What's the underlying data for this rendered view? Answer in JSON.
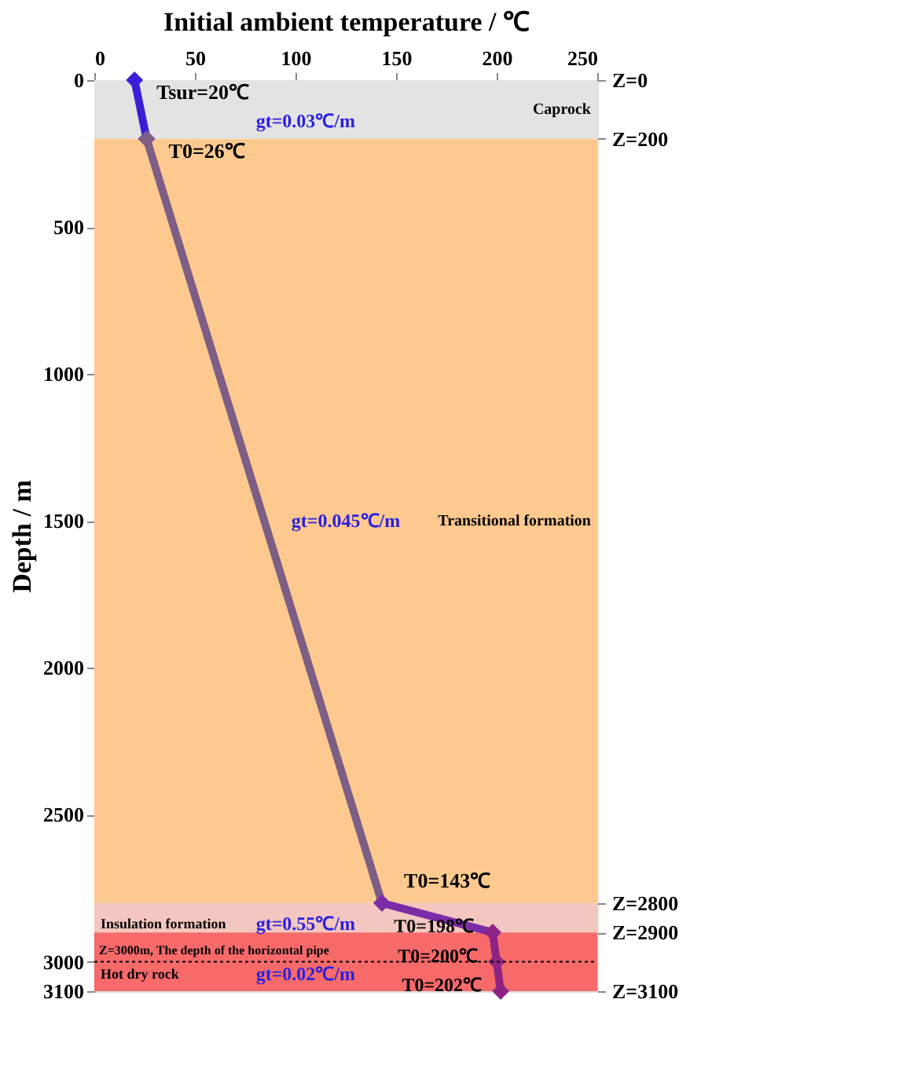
{
  "chart_data": {
    "type": "line",
    "xlabel": "Initial ambient temperature / ℃",
    "ylabel": "Depth / m",
    "xlim": [
      0,
      250
    ],
    "xticks": [
      0,
      50,
      100,
      150,
      200,
      250
    ],
    "ylim": [
      3100,
      0
    ],
    "yticks": [
      0,
      500,
      1000,
      1500,
      2000,
      2500,
      3000,
      3100
    ],
    "y2lim": [
      3100,
      0
    ],
    "y2ticks": [
      {
        "value": 0,
        "label": "Z=0"
      },
      {
        "value": 200,
        "label": "Z=200"
      },
      {
        "value": 2800,
        "label": "Z=2800"
      },
      {
        "value": 2900,
        "label": "Z=2900"
      },
      {
        "value": 3100,
        "label": "Z=3100"
      }
    ],
    "marker": "diamond",
    "line_style": "solid",
    "grid": false,
    "series": [
      {
        "color": "#3b1fd6",
        "x": [
          20,
          26
        ],
        "values": [
          0,
          200
        ]
      },
      {
        "color": "#7d5e85",
        "x": [
          26,
          143
        ],
        "values": [
          200,
          2800
        ]
      },
      {
        "color": "#7b2ba6",
        "x": [
          143,
          198
        ],
        "values": [
          2800,
          2900
        ]
      },
      {
        "color": "#8f2384",
        "x": [
          198,
          200,
          202
        ],
        "values": [
          2900,
          3000,
          3100
        ]
      }
    ],
    "bands": [
      {
        "axis": "y",
        "from": 0,
        "to": 200,
        "label": "Caprock",
        "color": "#e3e3e3"
      },
      {
        "axis": "y",
        "from": 200,
        "to": 2800,
        "label": "Transitional formation",
        "color": "#fdc98f"
      },
      {
        "axis": "y",
        "from": 2800,
        "to": 2900,
        "label": "Insulation formation",
        "color": "#f3c6c0"
      },
      {
        "axis": "y",
        "from": 2900,
        "to": 3100,
        "label": "Hot dry rock",
        "color": "#f76a6a"
      }
    ],
    "ref_lines": [
      {
        "axis": "y",
        "value": 3000,
        "label": "Z=3000m, The depth of the horizontal pipe",
        "line_style": "dotted",
        "color": "#000000"
      }
    ],
    "annotations": [
      {
        "text": "Tsur=20℃",
        "x": 20,
        "y": 0
      },
      {
        "text": "T0=26℃",
        "x": 26,
        "y": 200
      },
      {
        "text": "T0=143℃",
        "x": 143,
        "y": 2800
      },
      {
        "text": "T0=198℃",
        "x": 198,
        "y": 2900
      },
      {
        "text": "T0=200℃",
        "x": 200,
        "y": 3000
      },
      {
        "text": "T0=202℃",
        "x": 202,
        "y": 3100
      },
      "gt=0.03℃/m",
      "gt=0.045℃/m",
      "gt=0.55℃/m",
      "gt=0.02℃/m"
    ]
  }
}
